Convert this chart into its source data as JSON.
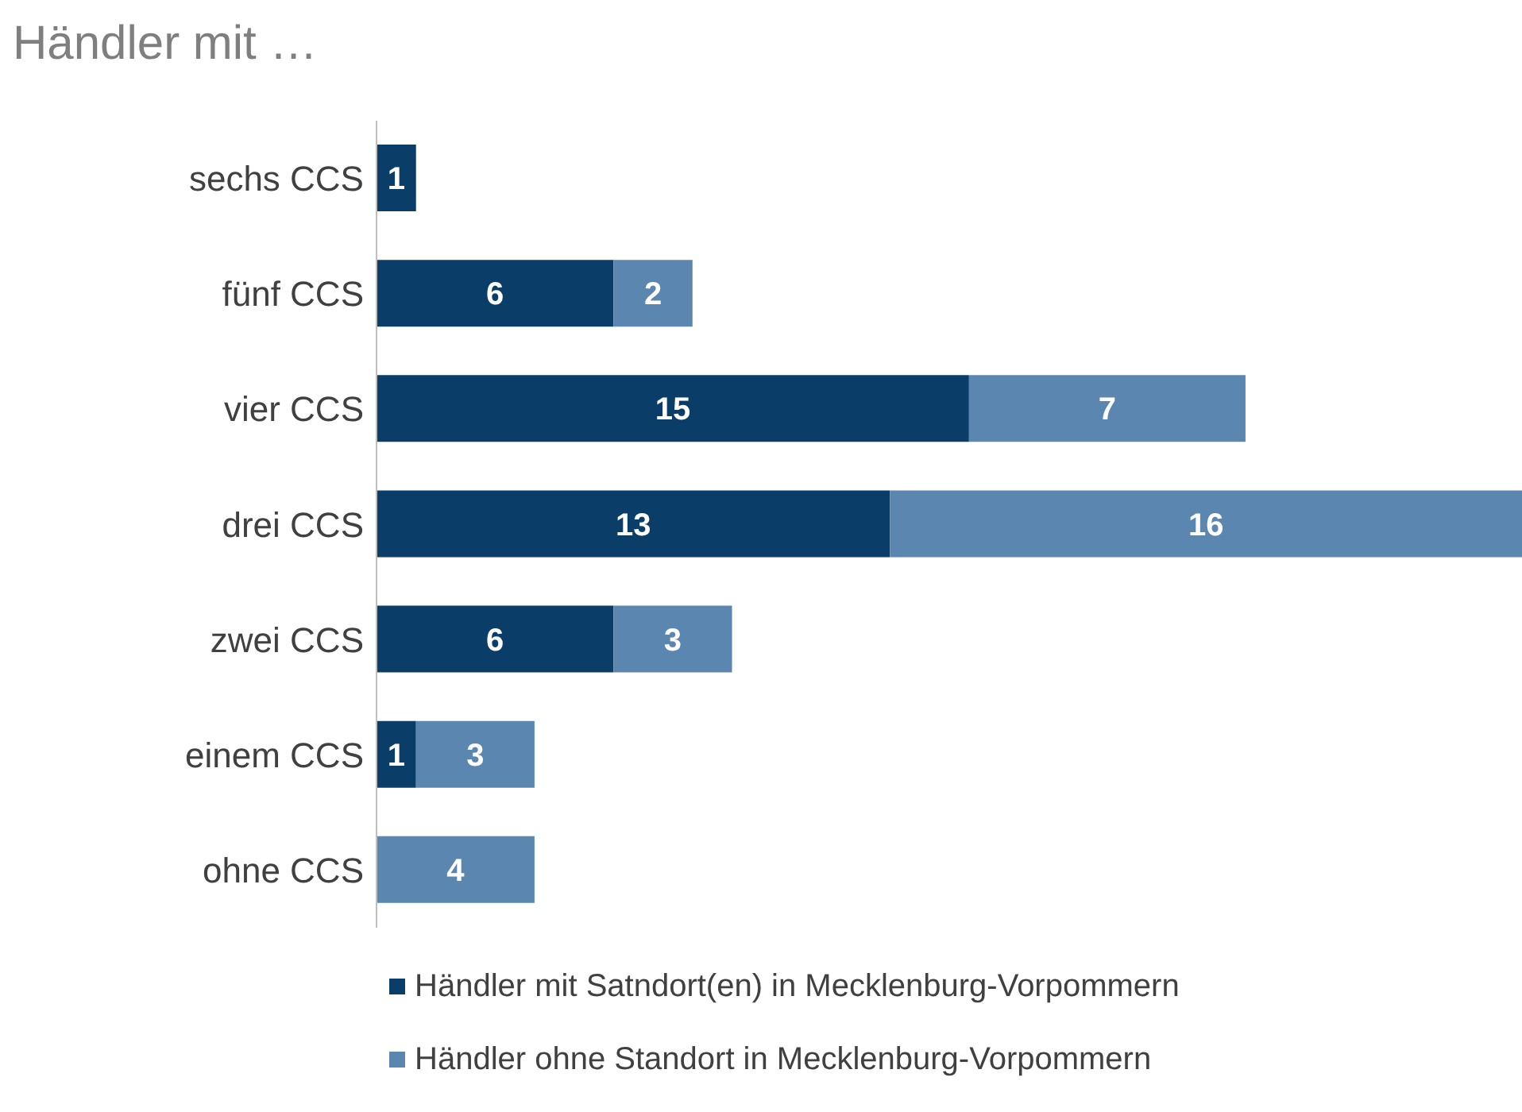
{
  "chart_data": {
    "type": "bar",
    "orientation": "horizontal",
    "stacked": true,
    "title": "Händler mit …",
    "categories": [
      "sechs CCS",
      "fünf CCS",
      "vier CCS",
      "drei CCS",
      "zwei CCS",
      "einem CCS",
      "ohne CCS"
    ],
    "series": [
      {
        "name": "Händler mit Satndort(en) in Mecklenburg-Vorpommern",
        "color": "#0b3d69",
        "values": [
          1,
          6,
          15,
          13,
          6,
          1,
          null
        ]
      },
      {
        "name": "Händler ohne Standort in Mecklenburg-Vorpommern",
        "color": "#5b86b0",
        "values": [
          null,
          2,
          7,
          16,
          3,
          3,
          4
        ]
      }
    ],
    "data_labels": true,
    "legend": "bottom"
  }
}
